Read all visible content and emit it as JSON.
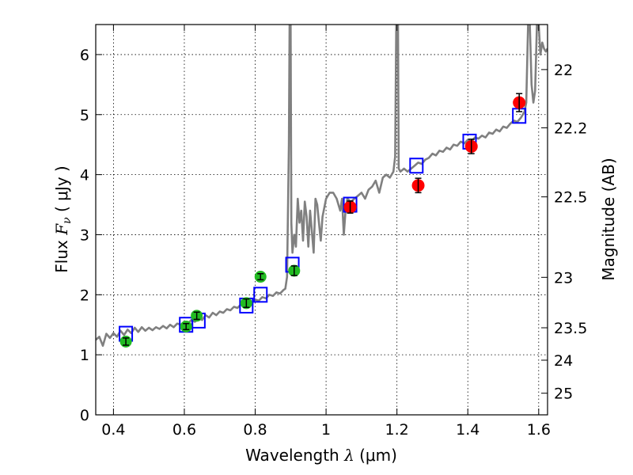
{
  "chart_data": {
    "type": "scatter",
    "xlabel": "Wavelength  λ (μm)",
    "ylabel": "Flux  Fν ( μJy )",
    "ylabel_parts": {
      "prefix": "Flux  ",
      "symbol": "F",
      "subscript": "ν",
      "suffix": "  (  μJy  )"
    },
    "xlabel_parts": {
      "prefix": "Wavelength  ",
      "symbol": "λ",
      "suffix": " (μm)"
    },
    "right_label": "Magnitude (AB)",
    "xlim": [
      0.35,
      1.625
    ],
    "ylim": [
      0,
      6.5
    ],
    "grid": true,
    "x_ticks": [
      0.4,
      0.6,
      0.8,
      1.0,
      1.2,
      1.4,
      1.6
    ],
    "x_tick_labels": [
      "0.4",
      "0.6",
      "0.8",
      "1",
      "1.2",
      "1.4",
      "1.6"
    ],
    "y_ticks": [
      0,
      1,
      2,
      3,
      4,
      5,
      6
    ],
    "y_tick_labels": [
      "0",
      "1",
      "2",
      "3",
      "4",
      "5",
      "6"
    ],
    "right_ticks": [
      {
        "label": "22",
        "flux": 5.75
      },
      {
        "label": "22.2",
        "flux": 4.78
      },
      {
        "label": "22.5",
        "flux": 3.63
      },
      {
        "label": "23",
        "flux": 2.29
      },
      {
        "label": "23.5",
        "flux": 1.45
      },
      {
        "label": "24",
        "flux": 0.91
      },
      {
        "label": "25",
        "flux": 0.36
      }
    ],
    "colors": {
      "spectrum": "#808080",
      "model_box": "#0000ff",
      "optical": "#22bb22",
      "nir": "#ff0000",
      "errorbar": "#000000"
    },
    "series": [
      {
        "kind": "spectrum-line",
        "points": [
          [
            0.35,
            1.25
          ],
          [
            0.36,
            1.3
          ],
          [
            0.37,
            1.15
          ],
          [
            0.38,
            1.35
          ],
          [
            0.39,
            1.28
          ],
          [
            0.4,
            1.36
          ],
          [
            0.41,
            1.3
          ],
          [
            0.42,
            1.4
          ],
          [
            0.43,
            1.33
          ],
          [
            0.44,
            1.42
          ],
          [
            0.45,
            1.36
          ],
          [
            0.46,
            1.45
          ],
          [
            0.47,
            1.38
          ],
          [
            0.48,
            1.46
          ],
          [
            0.49,
            1.4
          ],
          [
            0.5,
            1.45
          ],
          [
            0.51,
            1.41
          ],
          [
            0.52,
            1.46
          ],
          [
            0.53,
            1.43
          ],
          [
            0.54,
            1.48
          ],
          [
            0.55,
            1.44
          ],
          [
            0.56,
            1.5
          ],
          [
            0.57,
            1.46
          ],
          [
            0.58,
            1.52
          ],
          [
            0.59,
            1.5
          ],
          [
            0.6,
            1.55
          ],
          [
            0.61,
            1.52
          ],
          [
            0.62,
            1.58
          ],
          [
            0.63,
            1.55
          ],
          [
            0.64,
            1.62
          ],
          [
            0.65,
            1.58
          ],
          [
            0.66,
            1.66
          ],
          [
            0.67,
            1.62
          ],
          [
            0.68,
            1.7
          ],
          [
            0.69,
            1.66
          ],
          [
            0.7,
            1.72
          ],
          [
            0.71,
            1.7
          ],
          [
            0.72,
            1.76
          ],
          [
            0.73,
            1.74
          ],
          [
            0.74,
            1.8
          ],
          [
            0.75,
            1.78
          ],
          [
            0.76,
            1.84
          ],
          [
            0.77,
            1.82
          ],
          [
            0.78,
            1.88
          ],
          [
            0.79,
            1.86
          ],
          [
            0.8,
            1.92
          ],
          [
            0.81,
            1.9
          ],
          [
            0.82,
            1.96
          ],
          [
            0.83,
            1.94
          ],
          [
            0.84,
            2.0
          ],
          [
            0.85,
            1.98
          ],
          [
            0.86,
            2.04
          ],
          [
            0.87,
            2.02
          ],
          [
            0.88,
            2.08
          ],
          [
            0.885,
            2.1
          ],
          [
            0.89,
            2.3
          ],
          [
            0.895,
            4.5
          ],
          [
            0.897,
            6.5
          ],
          [
            0.9,
            6.5
          ],
          [
            0.902,
            3.2
          ],
          [
            0.905,
            2.7
          ],
          [
            0.91,
            3.0
          ],
          [
            0.915,
            2.8
          ],
          [
            0.92,
            3.6
          ],
          [
            0.925,
            3.2
          ],
          [
            0.93,
            3.4
          ],
          [
            0.935,
            2.9
          ],
          [
            0.94,
            3.55
          ],
          [
            0.945,
            3.3
          ],
          [
            0.95,
            2.8
          ],
          [
            0.955,
            3.4
          ],
          [
            0.96,
            3.05
          ],
          [
            0.965,
            2.7
          ],
          [
            0.97,
            3.6
          ],
          [
            0.975,
            3.5
          ],
          [
            0.98,
            3.2
          ],
          [
            0.985,
            2.9
          ],
          [
            0.99,
            3.3
          ],
          [
            1.0,
            3.6
          ],
          [
            1.01,
            3.7
          ],
          [
            1.02,
            3.7
          ],
          [
            1.03,
            3.6
          ],
          [
            1.04,
            3.4
          ],
          [
            1.045,
            3.6
          ],
          [
            1.05,
            3.0
          ],
          [
            1.055,
            3.4
          ],
          [
            1.06,
            3.6
          ],
          [
            1.07,
            3.55
          ],
          [
            1.08,
            3.6
          ],
          [
            1.09,
            3.65
          ],
          [
            1.1,
            3.7
          ],
          [
            1.11,
            3.6
          ],
          [
            1.12,
            3.75
          ],
          [
            1.13,
            3.8
          ],
          [
            1.14,
            3.9
          ],
          [
            1.15,
            3.7
          ],
          [
            1.16,
            3.95
          ],
          [
            1.17,
            4.0
          ],
          [
            1.18,
            3.95
          ],
          [
            1.19,
            4.05
          ],
          [
            1.195,
            4.3
          ],
          [
            1.198,
            6.5
          ],
          [
            1.203,
            6.5
          ],
          [
            1.205,
            4.1
          ],
          [
            1.21,
            4.05
          ],
          [
            1.22,
            4.1
          ],
          [
            1.23,
            4.05
          ],
          [
            1.24,
            4.1
          ],
          [
            1.25,
            4.15
          ],
          [
            1.26,
            4.2
          ],
          [
            1.27,
            4.18
          ],
          [
            1.28,
            4.25
          ],
          [
            1.29,
            4.28
          ],
          [
            1.3,
            4.35
          ],
          [
            1.31,
            4.32
          ],
          [
            1.32,
            4.4
          ],
          [
            1.33,
            4.38
          ],
          [
            1.34,
            4.45
          ],
          [
            1.35,
            4.42
          ],
          [
            1.36,
            4.5
          ],
          [
            1.37,
            4.48
          ],
          [
            1.38,
            4.55
          ],
          [
            1.39,
            4.52
          ],
          [
            1.4,
            4.58
          ],
          [
            1.41,
            4.55
          ],
          [
            1.42,
            4.62
          ],
          [
            1.43,
            4.6
          ],
          [
            1.44,
            4.65
          ],
          [
            1.45,
            4.62
          ],
          [
            1.46,
            4.7
          ],
          [
            1.47,
            4.68
          ],
          [
            1.48,
            4.75
          ],
          [
            1.49,
            4.72
          ],
          [
            1.5,
            4.8
          ],
          [
            1.51,
            4.78
          ],
          [
            1.52,
            4.85
          ],
          [
            1.53,
            4.9
          ],
          [
            1.54,
            4.88
          ],
          [
            1.55,
            4.95
          ],
          [
            1.56,
            5.05
          ],
          [
            1.565,
            5.2
          ],
          [
            1.57,
            6.5
          ],
          [
            1.575,
            6.5
          ],
          [
            1.58,
            5.5
          ],
          [
            1.585,
            5.2
          ],
          [
            1.59,
            5.4
          ],
          [
            1.595,
            6.5
          ],
          [
            1.6,
            6.5
          ],
          [
            1.605,
            6.0
          ],
          [
            1.61,
            6.2
          ],
          [
            1.615,
            6.1
          ],
          [
            1.62,
            6.05
          ],
          [
            1.625,
            6.1
          ]
        ]
      },
      {
        "kind": "model-boxes",
        "points": [
          [
            0.435,
            1.35
          ],
          [
            0.605,
            1.5
          ],
          [
            0.64,
            1.57
          ],
          [
            0.775,
            1.82
          ],
          [
            0.815,
            2.0
          ],
          [
            0.905,
            2.5
          ],
          [
            1.068,
            3.5
          ],
          [
            1.255,
            4.15
          ],
          [
            1.405,
            4.55
          ],
          [
            1.545,
            4.98
          ]
        ]
      },
      {
        "kind": "optical-points",
        "points": [
          {
            "x": 0.435,
            "y": 1.22,
            "err": 0.06
          },
          {
            "x": 0.605,
            "y": 1.47,
            "err": 0.05
          },
          {
            "x": 0.635,
            "y": 1.65,
            "err": 0.06
          },
          {
            "x": 0.775,
            "y": 1.86,
            "err": 0.07
          },
          {
            "x": 0.815,
            "y": 2.3,
            "err": 0.05
          },
          {
            "x": 0.91,
            "y": 2.4,
            "err": 0.08
          }
        ]
      },
      {
        "kind": "nir-points",
        "points": [
          {
            "x": 1.068,
            "y": 3.46,
            "err": 0.1
          },
          {
            "x": 1.26,
            "y": 3.82,
            "err": 0.12
          },
          {
            "x": 1.41,
            "y": 4.47,
            "err": 0.12
          },
          {
            "x": 1.545,
            "y": 5.2,
            "err": 0.15
          }
        ]
      }
    ]
  }
}
